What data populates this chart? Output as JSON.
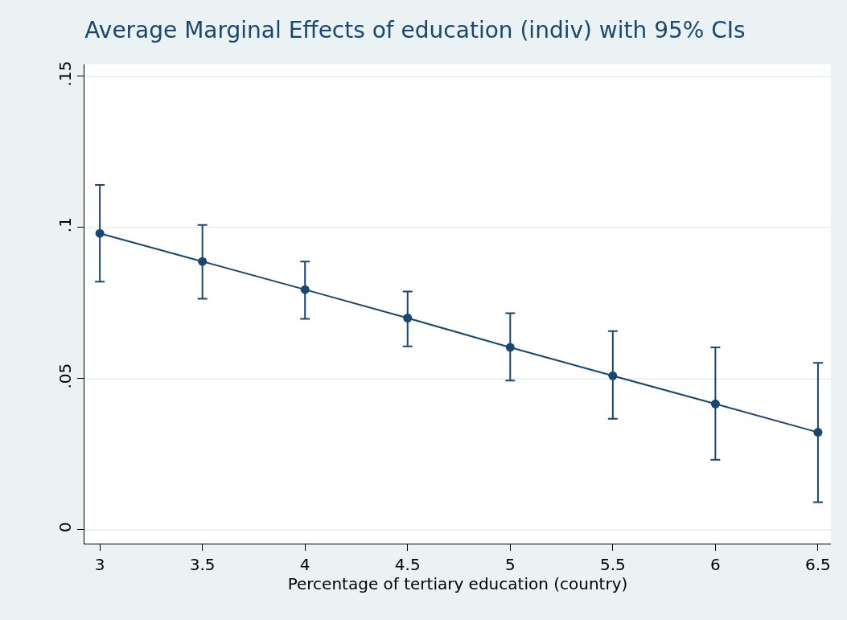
{
  "chart_data": {
    "type": "line",
    "title": "Average Marginal Effects of education (indiv) with 95% CIs",
    "xlabel": "Percentage of tertiary education (country)",
    "x": [
      3,
      3.5,
      4,
      4.5,
      5,
      5.5,
      6,
      6.5
    ],
    "series": [
      {
        "color": "#1a476f",
        "values": [
          0.098,
          0.0887,
          0.0794,
          0.07,
          0.0603,
          0.0509,
          0.0416,
          0.0322
        ],
        "errors": [
          [
            0.082,
            0.114
          ],
          [
            0.0764,
            0.1008
          ],
          [
            0.0697,
            0.0887
          ],
          [
            0.0606,
            0.0788
          ],
          [
            0.0493,
            0.0716
          ],
          [
            0.0367,
            0.0657
          ],
          [
            0.0231,
            0.0603
          ],
          [
            0.0091,
            0.0552
          ]
        ]
      }
    ],
    "xlim": [
      2.925,
      6.563
    ],
    "xticks": [
      3,
      3.5,
      4,
      4.5,
      5,
      5.5,
      6,
      6.5
    ],
    "ylim": [
      -0.0046,
      0.1539
    ],
    "yticks": [
      {
        "value": 0,
        "label": "0"
      },
      {
        "value": 0.05,
        "label": ".05"
      },
      {
        "value": 0.1,
        "label": ".1"
      },
      {
        "value": 0.15,
        "label": ".15"
      }
    ],
    "grid": "y",
    "marker": "circle",
    "line_style": "solid"
  }
}
